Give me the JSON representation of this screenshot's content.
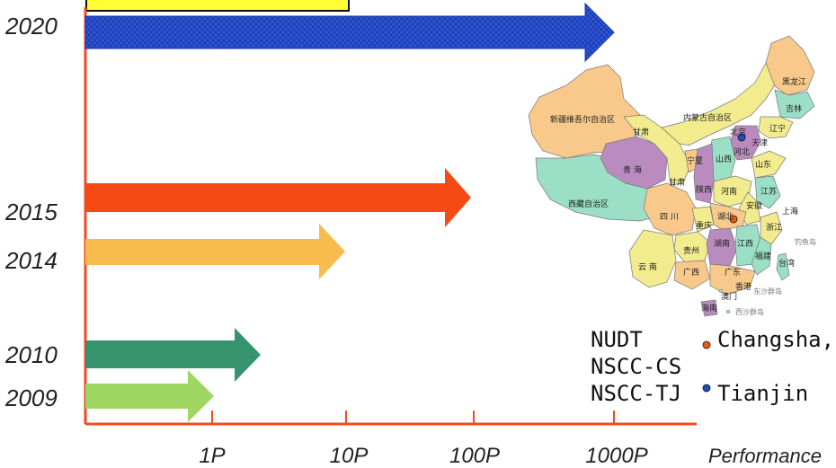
{
  "years": {
    "y2020": "2020",
    "y2015": "2015",
    "y2014": "2014",
    "y2010": "2010",
    "y2009": "2009"
  },
  "x_axis": {
    "ticks": [
      "1P",
      "10P",
      "100P",
      "1000P"
    ],
    "title": "Performance"
  },
  "arrows": [
    {
      "year": "2020",
      "color": "#2f56d9",
      "pattern": "crosshatch"
    },
    {
      "year": "2015",
      "color": "#f54a14"
    },
    {
      "year": "2014",
      "color": "#f7bb4e"
    },
    {
      "year": "2010",
      "color": "#35946e"
    },
    {
      "year": "2009",
      "color": "#9fd662"
    }
  ],
  "legend": {
    "orgs": [
      "NUDT",
      "NSCC-CS",
      "NSCC-TJ"
    ],
    "changsha": "Changsha,",
    "tianjin": "Tianjin",
    "changsha_color": "#f05a14",
    "tianjin_color": "#1f4fb8"
  },
  "map": {
    "provinces": {
      "xinjiang": "新疆维吾尔自治区",
      "xizang": "西藏自治区",
      "neimenggu": "内蒙古自治区",
      "heilongjiang": "黑龙江",
      "jilin": "吉林",
      "liaoning": "辽宁",
      "gansu1": "甘肃",
      "gansu2": "甘肃",
      "qinghai": "青 海",
      "ningxia": "宁夏",
      "shanxi": "山西",
      "hebei": "河北",
      "beijing": "北京",
      "tianjin": "天津",
      "shandong": "山东",
      "shaanxi": "陕西",
      "henan": "河南",
      "jiangsu": "江苏",
      "anhui": "安徽",
      "shanghai": "上海",
      "sichuan": "四 川",
      "hubei": "湖北",
      "zhejiang": "浙江",
      "chongqing": "重庆",
      "guizhou": "贵州",
      "hunan": "湖南",
      "jiangxi": "江西",
      "fujian": "福建",
      "yunnan": "云 南",
      "guangxi": "广西",
      "guangdong": "广东",
      "taiwan": "台湾",
      "hongkong": "香港",
      "macau": "澳门",
      "hainan": "海南",
      "diaoyu": "钓鱼岛",
      "dongsha": "东沙群岛",
      "xisha": "西沙群岛"
    },
    "colors": {
      "orange": "#f8c98a",
      "yellow": "#f3ec8e",
      "teal": "#9be0c6",
      "purple": "#b98bbf",
      "pink": "#f7b9c3"
    }
  }
}
